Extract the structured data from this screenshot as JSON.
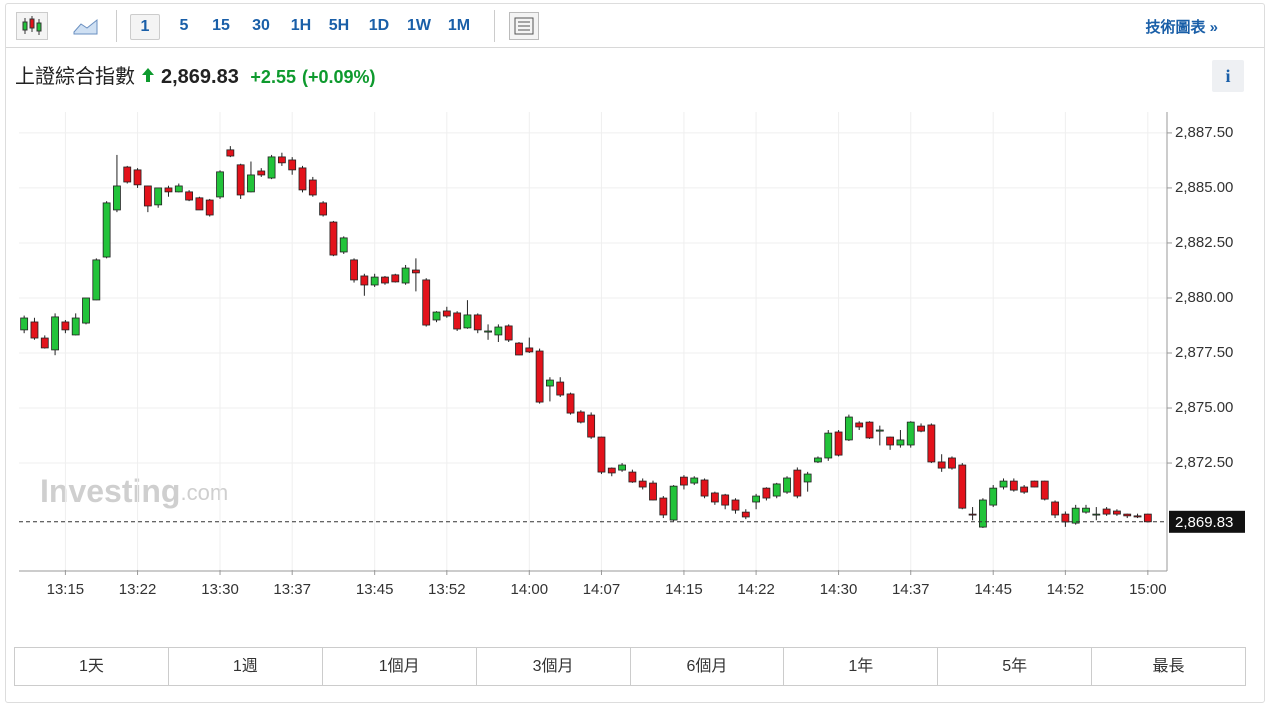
{
  "toolbar": {
    "intervals": [
      "1",
      "5",
      "15",
      "30",
      "1H",
      "5H",
      "1D",
      "1W",
      "1M"
    ],
    "link": "技術圖表 »"
  },
  "header": {
    "title": "上證綜合指數",
    "price": "2,869.83",
    "change": "+2.55",
    "percent": "(+0.09%)",
    "info": "i"
  },
  "watermark": {
    "brand": "Investing",
    "suffix": ".com"
  },
  "ranges": [
    "1天",
    "1週",
    "1個月",
    "3個月",
    "6個月",
    "1年",
    "5年",
    "最長"
  ],
  "chart_data": {
    "type": "candlestick",
    "up_color": "#22c33a",
    "down_color": "#e3121b",
    "grid": true,
    "ylim": [
      2867.64,
      2888.45
    ],
    "yticks": [
      {
        "value": 2887.5,
        "label": "2,887.50"
      },
      {
        "value": 2885,
        "label": "2,885.00"
      },
      {
        "value": 2882.5,
        "label": "2,882.50"
      },
      {
        "value": 2880,
        "label": "2,880.00"
      },
      {
        "value": 2877.5,
        "label": "2,877.50"
      },
      {
        "value": 2875,
        "label": "2,875.00"
      },
      {
        "value": 2872.5,
        "label": "2,872.50"
      }
    ],
    "last_price": {
      "value": 2869.83,
      "label": "2,869.83"
    },
    "categories": [
      null,
      null,
      null,
      null,
      "13:15",
      null,
      null,
      null,
      null,
      null,
      null,
      "13:22",
      null,
      null,
      null,
      null,
      null,
      null,
      null,
      "13:30",
      null,
      null,
      null,
      null,
      null,
      null,
      "13:37",
      null,
      null,
      null,
      null,
      null,
      null,
      null,
      "13:45",
      null,
      null,
      null,
      null,
      null,
      null,
      "13:52",
      null,
      null,
      null,
      null,
      null,
      null,
      null,
      "14:00",
      null,
      null,
      null,
      null,
      null,
      null,
      "14:07",
      null,
      null,
      null,
      null,
      null,
      null,
      null,
      "14:15",
      null,
      null,
      null,
      null,
      null,
      null,
      "14:22",
      null,
      null,
      null,
      null,
      null,
      null,
      null,
      "14:30",
      null,
      null,
      null,
      null,
      null,
      null,
      "14:37",
      null,
      null,
      null,
      null,
      null,
      null,
      null,
      "14:45",
      null,
      null,
      null,
      null,
      null,
      null,
      "14:52",
      null,
      null,
      null,
      null,
      null,
      null,
      null,
      "15:00"
    ],
    "open": [
      2878.55,
      2878.91,
      2878.18,
      2877.64,
      2878.91,
      2878.32,
      2878.86,
      2879.91,
      2881.86,
      2884.0,
      2885.95,
      2885.82,
      2885.09,
      2884.23,
      2885.0,
      2884.82,
      2884.82,
      2884.55,
      2884.45,
      2884.59,
      2886.73,
      2886.05,
      2884.82,
      2885.77,
      2885.45,
      2886.41,
      2886.27,
      2885.91,
      2885.36,
      2884.32,
      2883.45,
      2882.09,
      2881.73,
      2881.0,
      2880.59,
      2880.95,
      2881.05,
      2880.68,
      2881.27,
      2880.82,
      2879.0,
      2879.41,
      2879.32,
      2878.64,
      2879.23,
      2878.45,
      2878.32,
      2878.73,
      2877.95,
      2877.73,
      2877.59,
      2876.0,
      2876.18,
      2875.64,
      2874.82,
      2874.68,
      2873.68,
      2872.27,
      2872.18,
      2872.09,
      2871.68,
      2871.59,
      2870.91,
      2869.91,
      2871.86,
      2871.59,
      2871.73,
      2871.14,
      2871.05,
      2870.82,
      2870.27,
      2870.73,
      2871.36,
      2871.0,
      2871.18,
      2872.18,
      2871.64,
      2872.55,
      2872.73,
      2873.91,
      2873.55,
      2874.32,
      2874.36,
      2873.95,
      2873.68,
      2873.32,
      2873.32,
      2874.18,
      2874.23,
      2872.55,
      2872.73,
      2872.41,
      2870.18,
      2869.59,
      2870.59,
      2871.41,
      2871.68,
      2871.41,
      2871.68,
      2871.68,
      2870.73,
      2870.18,
      2869.77,
      2870.27,
      2870.14,
      2870.41,
      2870.32,
      2870.18,
      2870.1,
      2870.18
    ],
    "high": [
      2879.2,
      2879.1,
      2878.3,
      2879.3,
      2879.0,
      2879.3,
      2880.0,
      2881.8,
      2884.4,
      2886.5,
      2886.0,
      2885.9,
      2885.1,
      2885.0,
      2885.1,
      2885.2,
      2884.9,
      2884.6,
      2884.5,
      2885.8,
      2886.9,
      2886.1,
      2886.2,
      2885.9,
      2886.5,
      2886.6,
      2886.4,
      2886.0,
      2885.5,
      2884.4,
      2883.5,
      2882.8,
      2881.8,
      2881.1,
      2881.1,
      2881.0,
      2881.1,
      2881.5,
      2881.8,
      2880.9,
      2879.4,
      2879.6,
      2879.4,
      2879.9,
      2879.3,
      2878.8,
      2878.8,
      2878.8,
      2878.0,
      2878.2,
      2877.7,
      2876.4,
      2876.4,
      2875.7,
      2874.9,
      2874.8,
      2873.7,
      2872.3,
      2872.5,
      2872.2,
      2871.8,
      2871.7,
      2871.0,
      2871.5,
      2871.95,
      2871.9,
      2871.8,
      2871.2,
      2871.1,
      2870.9,
      2870.4,
      2871.1,
      2871.4,
      2871.6,
      2871.9,
      2872.3,
      2872.1,
      2872.8,
      2874.0,
      2874.0,
      2874.7,
      2874.4,
      2874.4,
      2874.2,
      2873.7,
      2874.0,
      2874.4,
      2874.3,
      2874.3,
      2872.9,
      2872.8,
      2872.5,
      2870.5,
      2870.9,
      2871.5,
      2871.8,
      2871.8,
      2871.5,
      2871.7,
      2871.7,
      2870.8,
      2870.3,
      2870.6,
      2870.6,
      2870.5,
      2870.5,
      2870.4,
      2870.2,
      2870.2,
      2870.2
    ],
    "low": [
      2878.4,
      2878.1,
      2877.7,
      2877.4,
      2878.4,
      2878.3,
      2878.8,
      2879.9,
      2881.8,
      2883.9,
      2885.2,
      2885.0,
      2883.9,
      2884.1,
      2884.6,
      2884.8,
      2884.4,
      2884.0,
      2883.7,
      2884.5,
      2886.4,
      2884.5,
      2884.8,
      2885.5,
      2885.4,
      2886.0,
      2885.6,
      2884.8,
      2884.6,
      2883.7,
      2881.9,
      2882.0,
      2880.7,
      2880.1,
      2880.5,
      2880.6,
      2880.7,
      2880.6,
      2880.3,
      2878.7,
      2878.9,
      2879.1,
      2878.5,
      2878.6,
      2878.4,
      2878.1,
      2878.0,
      2878.0,
      2877.4,
      2877.5,
      2875.2,
      2875.3,
      2875.5,
      2874.7,
      2874.3,
      2873.6,
      2872.0,
      2871.9,
      2872.1,
      2871.6,
      2871.3,
      2870.8,
      2870.0,
      2869.85,
      2871.3,
      2871.5,
      2870.9,
      2870.6,
      2870.4,
      2870.2,
      2869.95,
      2870.4,
      2870.8,
      2870.9,
      2871.1,
      2870.9,
      2871.2,
      2872.5,
      2872.6,
      2872.8,
      2873.5,
      2874.0,
      2873.6,
      2873.3,
      2873.1,
      2873.2,
      2873.2,
      2873.9,
      2872.5,
      2872.1,
      2872.2,
      2870.4,
      2869.9,
      2869.55,
      2870.5,
      2871.3,
      2871.2,
      2871.1,
      2871.4,
      2870.8,
      2870.0,
      2869.6,
      2869.7,
      2870.2,
      2869.9,
      2870.1,
      2870.1,
      2870.0,
      2870.0,
      2869.8
    ],
    "close": [
      2879.09,
      2878.18,
      2877.73,
      2879.14,
      2878.55,
      2879.09,
      2880.0,
      2881.73,
      2884.32,
      2885.09,
      2885.27,
      2885.14,
      2884.18,
      2885.0,
      2884.82,
      2885.09,
      2884.45,
      2884.0,
      2883.77,
      2885.73,
      2886.45,
      2884.68,
      2885.59,
      2885.59,
      2886.41,
      2886.14,
      2885.82,
      2884.91,
      2884.68,
      2883.77,
      2881.95,
      2882.73,
      2880.82,
      2880.59,
      2880.95,
      2880.68,
      2880.73,
      2881.36,
      2881.14,
      2878.77,
      2879.36,
      2879.18,
      2878.59,
      2879.23,
      2878.55,
      2878.5,
      2878.68,
      2878.09,
      2877.41,
      2877.55,
      2875.27,
      2876.27,
      2875.59,
      2874.77,
      2874.36,
      2873.68,
      2872.09,
      2872.05,
      2872.41,
      2871.64,
      2871.41,
      2870.82,
      2870.14,
      2871.45,
      2871.5,
      2871.82,
      2871.0,
      2870.73,
      2870.59,
      2870.36,
      2870.05,
      2871.0,
      2870.91,
      2871.55,
      2871.82,
      2871.0,
      2872.0,
      2872.73,
      2873.86,
      2872.86,
      2874.59,
      2874.14,
      2873.64,
      2874.0,
      2873.32,
      2873.55,
      2874.36,
      2873.95,
      2872.55,
      2872.27,
      2872.27,
      2870.45,
      2870.14,
      2870.82,
      2871.36,
      2871.68,
      2871.27,
      2871.18,
      2871.41,
      2870.86,
      2870.14,
      2869.82,
      2870.45,
      2870.45,
      2870.18,
      2870.18,
      2870.18,
      2870.1,
      2870.05,
      2869.83
    ]
  }
}
